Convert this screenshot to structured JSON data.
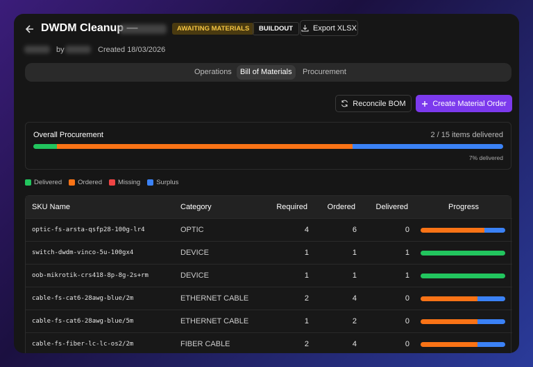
{
  "header": {
    "title": "DWDM Cleanup —",
    "status": "AWAITING MATERIALS",
    "tag": "BUILDOUT",
    "export": "Export XLSX"
  },
  "meta": {
    "by": "by",
    "created": "Created 18/03/2026"
  },
  "tabs": [
    "Operations",
    "Bill of Materials",
    "Procurement"
  ],
  "active_tab": 1,
  "actions": {
    "reconcile": "Reconcile BOM",
    "create": "Create Material Order"
  },
  "procurement": {
    "title": "Overall Procurement",
    "summary": "2 / 15 items delivered",
    "percent_label": "7% delivered",
    "bar": [
      5,
      63,
      0,
      32
    ]
  },
  "legend": [
    {
      "label": "Delivered",
      "color": "#22c55e"
    },
    {
      "label": "Ordered",
      "color": "#f97316"
    },
    {
      "label": "Missing",
      "color": "#ef4444"
    },
    {
      "label": "Surplus",
      "color": "#3b82f6"
    }
  ],
  "table": {
    "columns": [
      "SKU Name",
      "Category",
      "Required",
      "Ordered",
      "Delivered",
      "Progress"
    ],
    "rows": [
      [
        "optic-fs-arsta-qsfp28-100g-lr4",
        "OPTIC",
        "4",
        "6",
        "0"
      ],
      [
        "switch-dwdm-vinco-5u-100gx4",
        "DEVICE",
        "1",
        "1",
        "1"
      ],
      [
        "oob-mikrotik-crs418-8p-8g-2s+rm",
        "DEVICE",
        "1",
        "1",
        "1"
      ],
      [
        "cable-fs-cat6-28awg-blue/2m",
        "ETHERNET CABLE",
        "2",
        "4",
        "0"
      ],
      [
        "cable-fs-cat6-28awg-blue/5m",
        "ETHERNET CABLE",
        "1",
        "2",
        "0"
      ],
      [
        "cable-fs-fiber-lc-lc-os2/2m",
        "FIBER CABLE",
        "2",
        "4",
        "0"
      ]
    ],
    "progress": [
      [
        0,
        75,
        0,
        25
      ],
      [
        100,
        0,
        0,
        0
      ],
      [
        100,
        0,
        0,
        0
      ],
      [
        0,
        67,
        0,
        33
      ],
      [
        0,
        67,
        0,
        33
      ],
      [
        0,
        67,
        0,
        33
      ]
    ]
  }
}
